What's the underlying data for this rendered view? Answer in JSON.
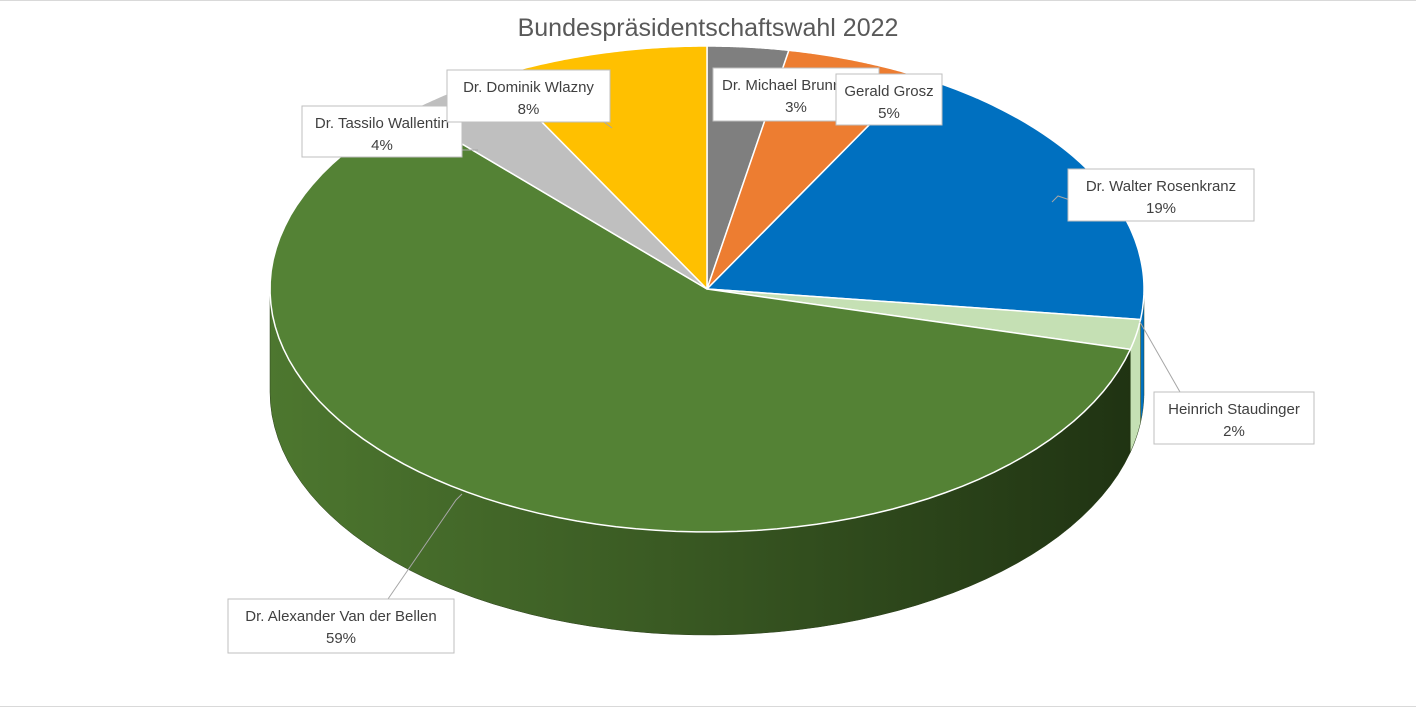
{
  "chart_data": {
    "type": "pie",
    "title": "Bundespräsidentschaftswahl 2022",
    "style": "3d",
    "slices": [
      {
        "label": "Dr. Michael Brunner",
        "value": 3,
        "display": "3%",
        "color": "#7f7f7f"
      },
      {
        "label": "Gerald Grosz",
        "value": 5,
        "display": "5%",
        "color": "#ed7d31"
      },
      {
        "label": "Dr. Walter Rosenkranz",
        "value": 19,
        "display": "19%",
        "color": "#0070c0"
      },
      {
        "label": "Heinrich Staudinger",
        "value": 2,
        "display": "2%",
        "color": "#c5e0b4"
      },
      {
        "label": "Dr. Alexander Van der Bellen",
        "value": 59,
        "display": "59%",
        "color": "#548235"
      },
      {
        "label": "Dr. Tassilo Wallentin",
        "value": 4,
        "display": "4%",
        "color": "#bfbfbf"
      },
      {
        "label": "Dr. Dominik Wlazny",
        "value": 8,
        "display": "8%",
        "color": "#ffc000"
      }
    ]
  }
}
